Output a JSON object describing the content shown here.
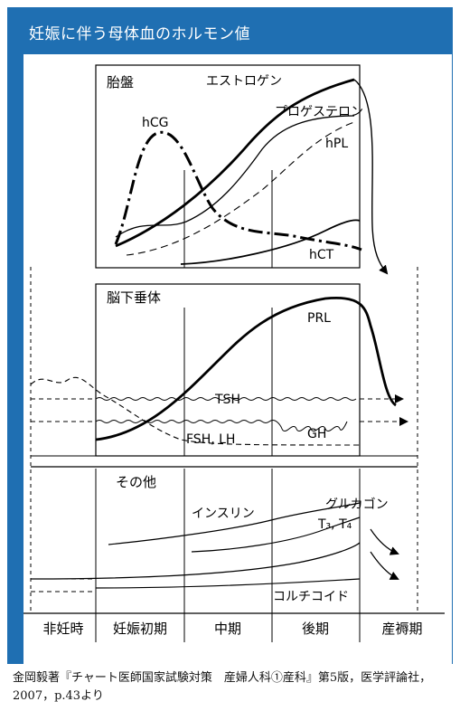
{
  "header": {
    "title": "妊娠に伴う母体血のホルモン値"
  },
  "sections": {
    "placenta": "胎盤",
    "pituitary": "脳下垂体",
    "other": "その他"
  },
  "hormones": {
    "estrogen": "エストロゲン",
    "progesterone": "プロゲステロン",
    "hpl": "hPL",
    "hcg": "hCG",
    "hct": "hCT",
    "prl": "PRL",
    "tsh": "TSH",
    "fsh_lh": "FSH, LH",
    "gh": "GH",
    "insulin": "インスリン",
    "glucagon": "グルカゴン",
    "t3t4": "T₃, T₄",
    "cortisol": "コルチコイド"
  },
  "periods": [
    "非妊時",
    "妊娠初期",
    "中期",
    "後期",
    "産褥期"
  ],
  "caption": "金岡毅著『チャート医師国家試験対策　産婦人科①産科』第5版，医学評論社，2007，p.43より",
  "colors": {
    "frame": "#1f6fb2",
    "ink": "#000000",
    "background": "#ffffff"
  }
}
